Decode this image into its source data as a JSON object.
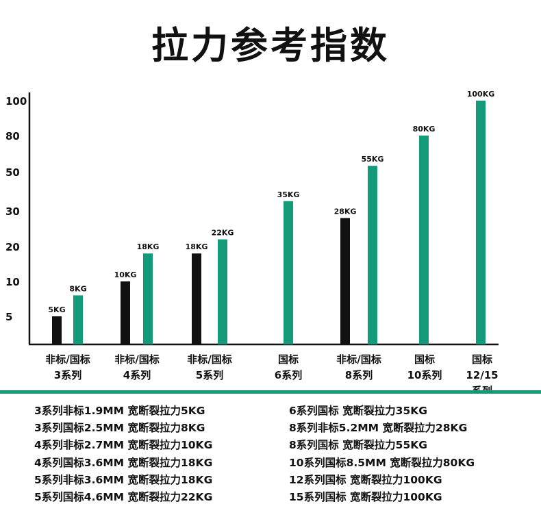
{
  "chart_data": {
    "type": "bar",
    "title": "拉力参考指数",
    "xlabel": "",
    "ylabel": "",
    "y_ticks": [
      5,
      10,
      20,
      30,
      50,
      80,
      100
    ],
    "ylim": [
      0,
      100
    ],
    "categories": [
      [
        "非标/国标",
        "3系列"
      ],
      [
        "非标/国标",
        "4系列"
      ],
      [
        "非标/国标",
        "5系列"
      ],
      [
        "国标",
        "6系列"
      ],
      [
        "非标/国标",
        "8系列"
      ],
      [
        "国标",
        "10系列"
      ],
      [
        "国标",
        "12/15",
        "系列"
      ]
    ],
    "series": [
      {
        "name": "非标",
        "color": "#111111",
        "values": [
          5,
          10,
          18,
          null,
          28,
          null,
          null
        ],
        "labels": [
          "5KG",
          "10KG",
          "18KG",
          null,
          "28KG",
          null,
          null
        ]
      },
      {
        "name": "国标",
        "color": "#139a78",
        "values": [
          8,
          18,
          22,
          35,
          55,
          80,
          100
        ],
        "labels": [
          "8KG",
          "18KG",
          "22KG",
          "35KG",
          "55KG",
          "80KG",
          "100KG"
        ]
      }
    ],
    "grid": false
  },
  "notes": {
    "left": [
      "3系列非标1.9MM 宽断裂拉力5KG",
      "3系列国标2.5MM 宽断裂拉力8KG",
      "4系列非标2.7MM 宽断裂拉力10KG",
      "4系列国标3.6MM 宽断裂拉力18KG",
      "5系列非标3.6MM 宽断裂拉力18KG",
      "5系列国标4.6MM 宽断裂拉力22KG"
    ],
    "right": [
      "6系列国标 宽断裂拉力35KG",
      "8系列非标5.2MM 宽断裂拉力28KG",
      "8系列国标 宽断裂拉力55KG",
      "10系列国标8.5MM 宽断裂拉力80KG",
      "12系列国标 宽断裂拉力100KG",
      "15系列国标 宽断裂拉力100KG"
    ]
  }
}
